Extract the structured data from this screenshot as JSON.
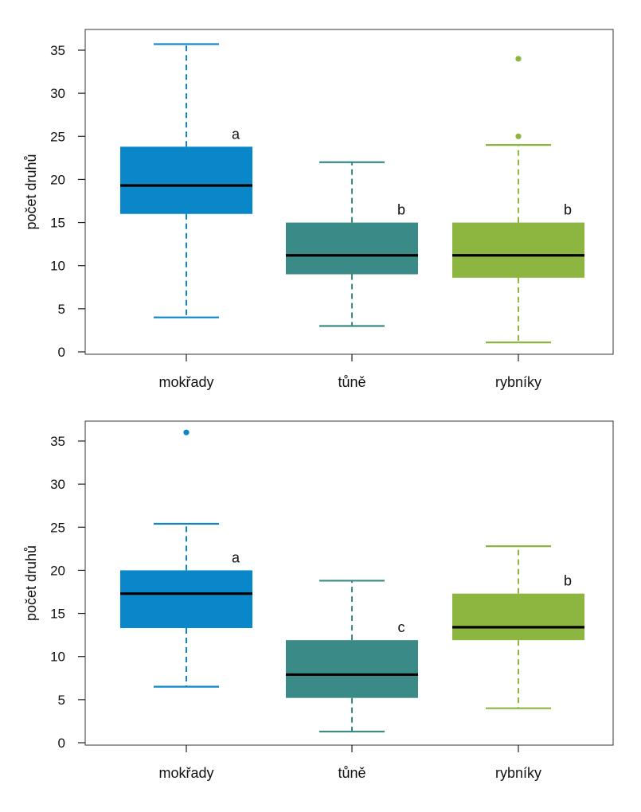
{
  "chart_data": [
    {
      "type": "box",
      "ylabel": "počet druhů",
      "ylim": [
        0,
        37
      ],
      "yticks": [
        0,
        5,
        10,
        15,
        20,
        25,
        30,
        35
      ],
      "categories": [
        "mokřady",
        "tůně",
        "rybníky"
      ],
      "boxes": [
        {
          "category": "mokřady",
          "whisker_low": 4,
          "q1": 16,
          "median": 19.3,
          "q3": 23.8,
          "whisker_high": 35.7,
          "outliers": [],
          "letter": "a",
          "color": "#0a87c9"
        },
        {
          "category": "tůně",
          "whisker_low": 3,
          "q1": 9,
          "median": 11.2,
          "q3": 15,
          "whisker_high": 22,
          "outliers": [],
          "letter": "b",
          "color": "#3a8a87"
        },
        {
          "category": "rybníky",
          "whisker_low": 1.1,
          "q1": 8.6,
          "median": 11.2,
          "q3": 15,
          "whisker_high": 24,
          "outliers": [
            25,
            34
          ],
          "letter": "b",
          "color": "#8db640"
        }
      ]
    },
    {
      "type": "box",
      "ylabel": "počet druhů",
      "ylim": [
        0,
        37
      ],
      "yticks": [
        0,
        5,
        10,
        15,
        20,
        25,
        30,
        35
      ],
      "categories": [
        "mokřady",
        "tůně",
        "rybníky"
      ],
      "boxes": [
        {
          "category": "mokřady",
          "whisker_low": 6.5,
          "q1": 13.3,
          "median": 17.3,
          "q3": 20,
          "whisker_high": 25.4,
          "outliers": [
            36
          ],
          "letter": "a",
          "color": "#0a87c9"
        },
        {
          "category": "tůně",
          "whisker_low": 1.3,
          "q1": 5.2,
          "median": 7.9,
          "q3": 11.9,
          "whisker_high": 18.8,
          "outliers": [],
          "letter": "c",
          "color": "#3a8a87"
        },
        {
          "category": "rybníky",
          "whisker_low": 4,
          "q1": 11.9,
          "median": 13.4,
          "q3": 17.3,
          "whisker_high": 22.8,
          "outliers": [],
          "letter": "b",
          "color": "#8db640"
        }
      ]
    }
  ]
}
